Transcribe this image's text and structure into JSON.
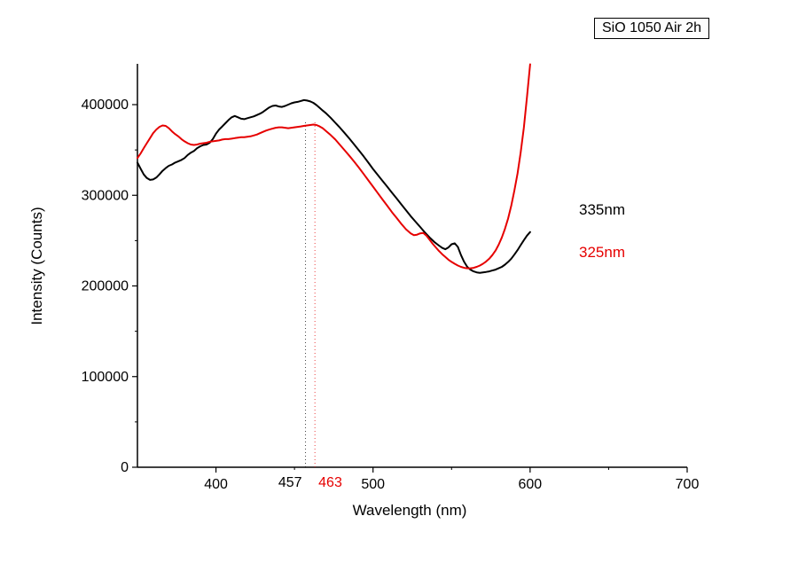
{
  "chart_data": {
    "type": "line",
    "title": "SiO 1050 Air 2h",
    "xlabel": "Wavelength (nm)",
    "ylabel": "Intensity (Counts)",
    "xlim": [
      350,
      700
    ],
    "ylim": [
      0,
      445000
    ],
    "grid": false,
    "legend_position": "right-of-curves",
    "x_major_ticks": [
      400,
      500,
      600,
      700
    ],
    "x_minor_ticks": [
      450,
      550,
      650
    ],
    "y_major_ticks": [
      0,
      100000,
      200000,
      300000,
      400000
    ],
    "y_minor_ticks": [
      50000,
      150000,
      250000,
      350000
    ],
    "vlines": [
      {
        "x": 457,
        "label": "457",
        "color": "#000000"
      },
      {
        "x": 463,
        "label": "463",
        "color": "#e60000"
      }
    ],
    "series": [
      {
        "name": "335nm",
        "color": "#000000",
        "points": [
          [
            350,
            336000
          ],
          [
            352,
            329500
          ],
          [
            354,
            323000
          ],
          [
            356,
            319000
          ],
          [
            358,
            317000
          ],
          [
            360,
            317500
          ],
          [
            362,
            319500
          ],
          [
            364,
            323000
          ],
          [
            366,
            327000
          ],
          [
            368,
            330000
          ],
          [
            370,
            332500
          ],
          [
            372,
            334000
          ],
          [
            374,
            336000
          ],
          [
            376,
            337500
          ],
          [
            378,
            339000
          ],
          [
            380,
            341000
          ],
          [
            382,
            344500
          ],
          [
            384,
            347000
          ],
          [
            386,
            349000
          ],
          [
            388,
            352000
          ],
          [
            390,
            354000
          ],
          [
            392,
            355500
          ],
          [
            394,
            356000
          ],
          [
            396,
            358000
          ],
          [
            398,
            362000
          ],
          [
            400,
            368000
          ],
          [
            402,
            372500
          ],
          [
            404,
            376000
          ],
          [
            406,
            379500
          ],
          [
            408,
            383000
          ],
          [
            410,
            386000
          ],
          [
            412,
            387500
          ],
          [
            414,
            386000
          ],
          [
            416,
            384500
          ],
          [
            418,
            384000
          ],
          [
            420,
            385000
          ],
          [
            422,
            386000
          ],
          [
            424,
            387000
          ],
          [
            426,
            388500
          ],
          [
            428,
            390000
          ],
          [
            430,
            392000
          ],
          [
            432,
            394500
          ],
          [
            434,
            397000
          ],
          [
            436,
            398500
          ],
          [
            438,
            399000
          ],
          [
            440,
            398000
          ],
          [
            442,
            397500
          ],
          [
            444,
            398500
          ],
          [
            446,
            400000
          ],
          [
            448,
            401500
          ],
          [
            450,
            402500
          ],
          [
            452,
            403000
          ],
          [
            454,
            404000
          ],
          [
            456,
            405000
          ],
          [
            458,
            404500
          ],
          [
            460,
            403500
          ],
          [
            462,
            402000
          ],
          [
            464,
            399500
          ],
          [
            466,
            396500
          ],
          [
            468,
            393500
          ],
          [
            470,
            390500
          ],
          [
            473,
            385500
          ],
          [
            476,
            380000
          ],
          [
            479,
            374500
          ],
          [
            482,
            368500
          ],
          [
            485,
            362500
          ],
          [
            488,
            356000
          ],
          [
            491,
            349500
          ],
          [
            494,
            343000
          ],
          [
            497,
            336000
          ],
          [
            500,
            329000
          ],
          [
            503,
            322500
          ],
          [
            506,
            316000
          ],
          [
            509,
            309500
          ],
          [
            512,
            303000
          ],
          [
            515,
            296500
          ],
          [
            518,
            290000
          ],
          [
            521,
            283500
          ],
          [
            524,
            277000
          ],
          [
            527,
            271000
          ],
          [
            530,
            265000
          ],
          [
            533,
            259000
          ],
          [
            536,
            253500
          ],
          [
            539,
            248500
          ],
          [
            542,
            244500
          ],
          [
            544,
            242000
          ],
          [
            546,
            240500
          ],
          [
            548,
            242500
          ],
          [
            550,
            246000
          ],
          [
            552,
            247000
          ],
          [
            554,
            243000
          ],
          [
            556,
            234000
          ],
          [
            558,
            226500
          ],
          [
            560,
            221000
          ],
          [
            562,
            218000
          ],
          [
            564,
            216000
          ],
          [
            566,
            215000
          ],
          [
            568,
            214500
          ],
          [
            570,
            215000
          ],
          [
            572,
            215500
          ],
          [
            574,
            216000
          ],
          [
            576,
            217000
          ],
          [
            578,
            218000
          ],
          [
            580,
            219500
          ],
          [
            582,
            221000
          ],
          [
            584,
            223500
          ],
          [
            586,
            226500
          ],
          [
            588,
            230000
          ],
          [
            590,
            234500
          ],
          [
            592,
            239500
          ],
          [
            594,
            245000
          ],
          [
            596,
            250500
          ],
          [
            598,
            255500
          ],
          [
            600,
            259500
          ]
        ]
      },
      {
        "name": "325nm",
        "color": "#e60000",
        "points": [
          [
            350,
            341000
          ],
          [
            352,
            346000
          ],
          [
            354,
            352000
          ],
          [
            356,
            357500
          ],
          [
            358,
            363000
          ],
          [
            360,
            368500
          ],
          [
            362,
            372500
          ],
          [
            364,
            375500
          ],
          [
            366,
            377000
          ],
          [
            368,
            376500
          ],
          [
            370,
            374000
          ],
          [
            372,
            370500
          ],
          [
            374,
            367500
          ],
          [
            376,
            365000
          ],
          [
            378,
            362000
          ],
          [
            380,
            359500
          ],
          [
            382,
            357500
          ],
          [
            384,
            356000
          ],
          [
            386,
            355500
          ],
          [
            388,
            356000
          ],
          [
            390,
            357000
          ],
          [
            392,
            357500
          ],
          [
            394,
            358000
          ],
          [
            396,
            359000
          ],
          [
            398,
            359500
          ],
          [
            400,
            360000
          ],
          [
            402,
            360500
          ],
          [
            404,
            361500
          ],
          [
            406,
            362000
          ],
          [
            408,
            362000
          ],
          [
            410,
            362500
          ],
          [
            412,
            363000
          ],
          [
            414,
            363500
          ],
          [
            416,
            364000
          ],
          [
            418,
            364000
          ],
          [
            420,
            364500
          ],
          [
            422,
            365000
          ],
          [
            424,
            366000
          ],
          [
            426,
            367000
          ],
          [
            428,
            368500
          ],
          [
            430,
            370000
          ],
          [
            432,
            371500
          ],
          [
            434,
            372500
          ],
          [
            436,
            373500
          ],
          [
            438,
            374500
          ],
          [
            440,
            375000
          ],
          [
            442,
            375000
          ],
          [
            444,
            374500
          ],
          [
            446,
            374000
          ],
          [
            448,
            374500
          ],
          [
            450,
            375000
          ],
          [
            452,
            375500
          ],
          [
            454,
            376000
          ],
          [
            456,
            376500
          ],
          [
            458,
            377000
          ],
          [
            460,
            377500
          ],
          [
            462,
            378000
          ],
          [
            464,
            377500
          ],
          [
            466,
            376000
          ],
          [
            468,
            374000
          ],
          [
            470,
            371000
          ],
          [
            473,
            366500
          ],
          [
            476,
            361500
          ],
          [
            479,
            355500
          ],
          [
            482,
            349500
          ],
          [
            485,
            343500
          ],
          [
            488,
            337000
          ],
          [
            491,
            330500
          ],
          [
            494,
            323500
          ],
          [
            497,
            316500
          ],
          [
            500,
            309500
          ],
          [
            503,
            302500
          ],
          [
            506,
            295500
          ],
          [
            509,
            288500
          ],
          [
            512,
            281500
          ],
          [
            515,
            275000
          ],
          [
            518,
            268500
          ],
          [
            521,
            262500
          ],
          [
            524,
            258000
          ],
          [
            526,
            256000
          ],
          [
            528,
            256500
          ],
          [
            530,
            258000
          ],
          [
            532,
            258500
          ],
          [
            534,
            255500
          ],
          [
            536,
            251000
          ],
          [
            538,
            246500
          ],
          [
            540,
            242500
          ],
          [
            542,
            238500
          ],
          [
            544,
            235000
          ],
          [
            546,
            232000
          ],
          [
            548,
            229000
          ],
          [
            550,
            226500
          ],
          [
            552,
            224500
          ],
          [
            554,
            222500
          ],
          [
            556,
            221000
          ],
          [
            558,
            220000
          ],
          [
            560,
            219500
          ],
          [
            562,
            219500
          ],
          [
            564,
            220000
          ],
          [
            566,
            221000
          ],
          [
            568,
            222500
          ],
          [
            570,
            224500
          ],
          [
            572,
            227000
          ],
          [
            574,
            230000
          ],
          [
            576,
            234000
          ],
          [
            578,
            239000
          ],
          [
            580,
            245500
          ],
          [
            582,
            253500
          ],
          [
            584,
            263000
          ],
          [
            586,
            274500
          ],
          [
            588,
            288500
          ],
          [
            590,
            305000
          ],
          [
            592,
            324000
          ],
          [
            594,
            347000
          ],
          [
            596,
            374500
          ],
          [
            598,
            408000
          ],
          [
            600,
            444500
          ]
        ]
      }
    ]
  }
}
